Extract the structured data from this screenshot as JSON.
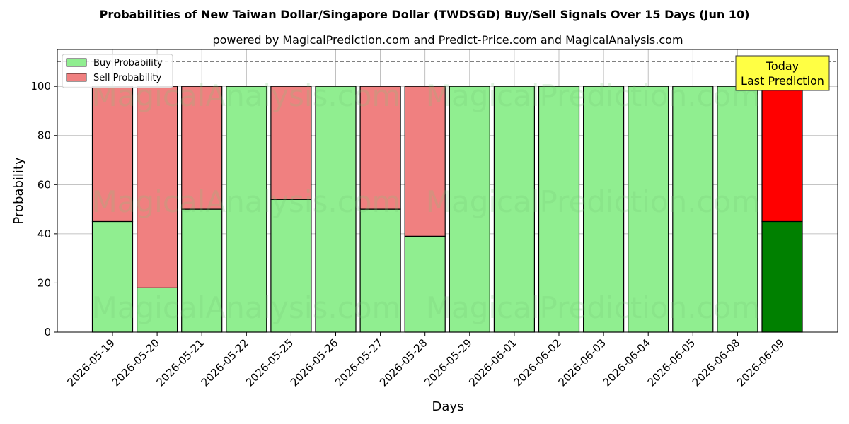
{
  "chart_data": {
    "type": "bar",
    "stacked": true,
    "title": "Probabilities of New Taiwan Dollar/Singapore Dollar (TWDSGD) Buy/Sell Signals Over 15 Days (Jun 10)",
    "subtitle": "powered by MagicalPrediction.com and Predict-Price.com and MagicalAnalysis.com",
    "xlabel": "Days",
    "ylabel": "Probability",
    "ylim": [
      0,
      115
    ],
    "yticks": [
      0,
      20,
      40,
      60,
      80,
      100
    ],
    "grid": true,
    "legend_position": "top-left",
    "reference_line": 110,
    "categories": [
      "2026-05-19",
      "2026-05-20",
      "2026-05-21",
      "2026-05-22",
      "2026-05-25",
      "2026-05-26",
      "2026-05-27",
      "2026-05-28",
      "2026-05-29",
      "2026-06-01",
      "2026-06-02",
      "2026-06-03",
      "2026-06-04",
      "2026-06-05",
      "2026-06-08",
      "2026-06-09"
    ],
    "series": [
      {
        "name": "Buy Probability",
        "color": "#90ee90",
        "highlight_color": "#008000",
        "values": [
          45,
          18,
          50,
          100,
          54,
          100,
          50,
          39,
          100,
          100,
          100,
          100,
          100,
          100,
          100,
          45
        ]
      },
      {
        "name": "Sell Probability",
        "color": "#f08080",
        "highlight_color": "#ff0000",
        "values": [
          55,
          82,
          50,
          0,
          46,
          0,
          50,
          61,
          0,
          0,
          0,
          0,
          0,
          0,
          0,
          55
        ]
      }
    ],
    "highlight_index": 15,
    "annotation": {
      "lines": [
        "Today",
        "Last Prediction"
      ],
      "color": "#ffff44"
    },
    "watermarks": [
      "MagicalAnalysis.com",
      "MagicalPrediction.com"
    ]
  }
}
